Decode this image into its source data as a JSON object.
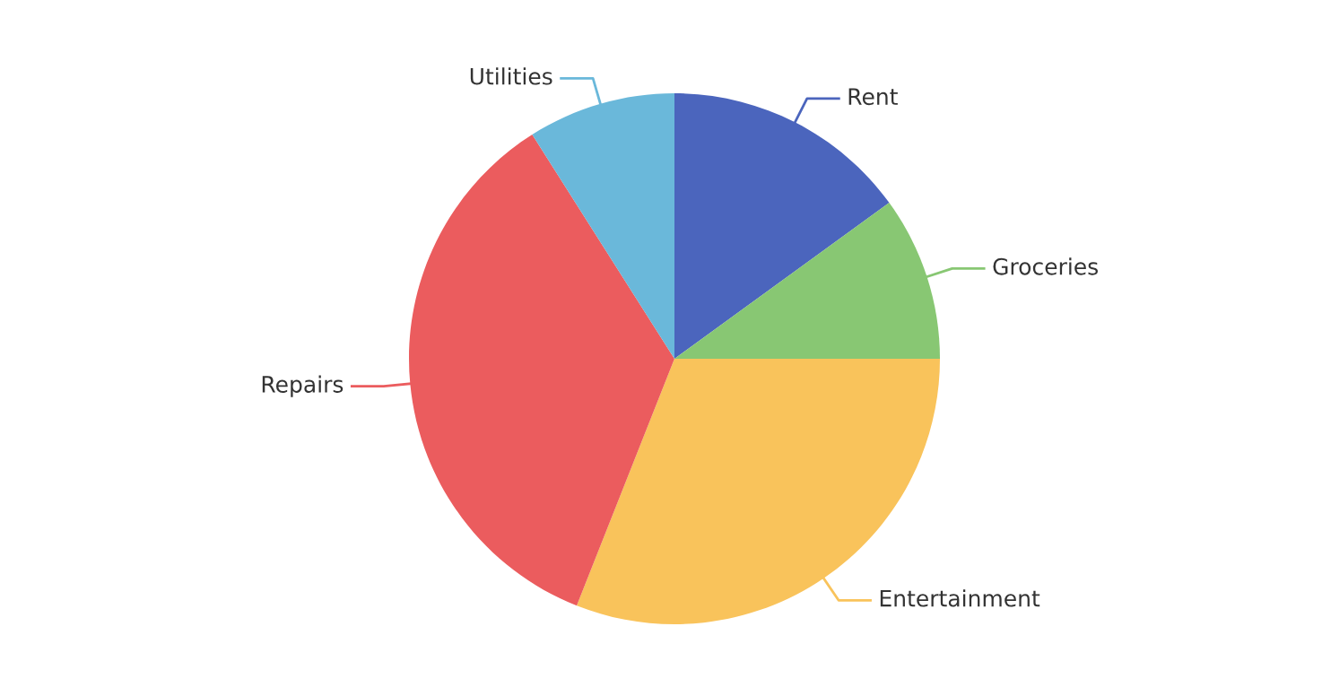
{
  "chart_data": {
    "type": "pie",
    "categories": [
      "Rent",
      "Groceries",
      "Entertainment",
      "Repairs",
      "Utilities"
    ],
    "values": [
      15,
      10,
      31,
      35,
      9
    ],
    "colors": [
      "#4b65bd",
      "#88c773",
      "#f9c35b",
      "#eb5c5e",
      "#6ab8da"
    ],
    "legend": false
  }
}
